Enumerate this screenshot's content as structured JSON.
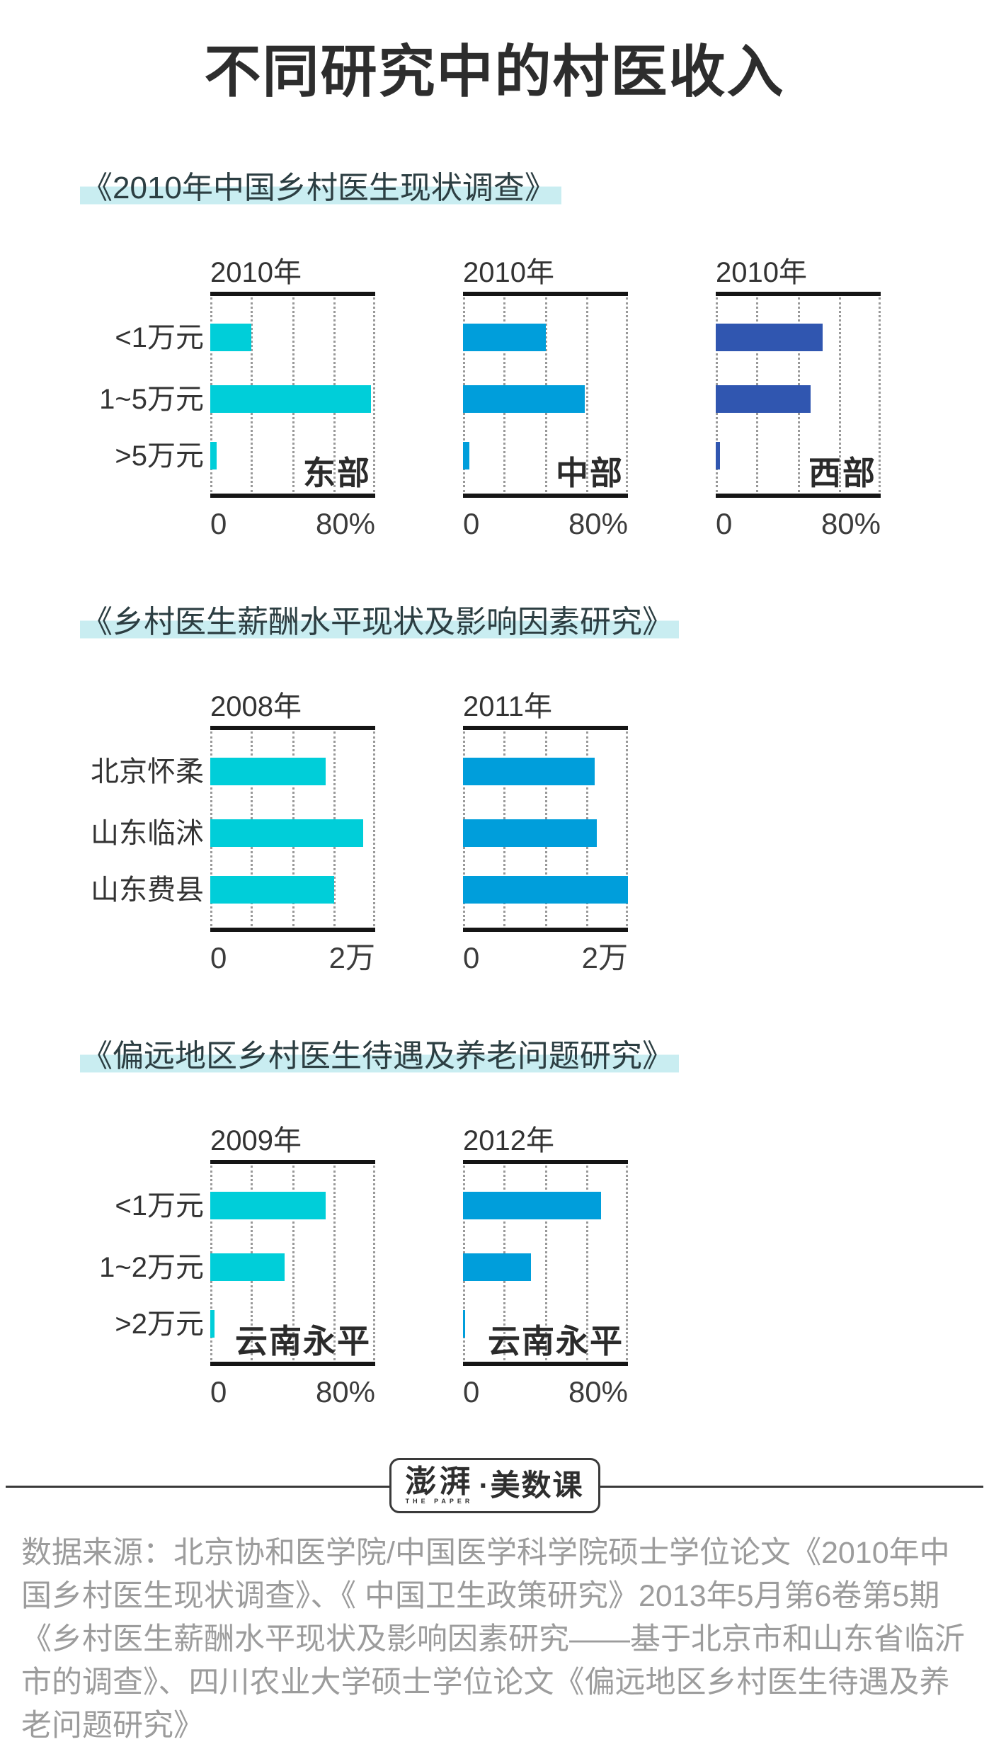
{
  "page": {
    "title": "不同研究中的村医收入"
  },
  "colors": {
    "cyan": "#00ced9",
    "blue": "#009edb",
    "royal_blue": "#3056b0",
    "highlight": "#c9edf1",
    "axis": "#151515",
    "gridline": "#999999",
    "footer_text": "#9c9c9c"
  },
  "logo": {
    "brand": "澎湃",
    "brand_sub": "THE PAPER",
    "suffix": "·美数课"
  },
  "footer": {
    "text": "数据来源：北京协和医学院/中国医学科学院硕士学位论文《2010年中\n国乡村医生现状调查》、《 中国卫生政策研究》2013年5月第6卷第5期\n《乡村医生薪酬水平现状及影响因素研究——基于北京市和山东省临沂\n市的调查》、四川农业大学硕士学位论文《偏远地区乡村医生待遇及养\n老问题研究》"
  },
  "chart_data": [
    {
      "section_title": "《2010年中国乡村医生现状调查》",
      "type": "bar",
      "orientation": "horizontal",
      "categories": [
        "<1万元",
        "1~5万元",
        ">5万元"
      ],
      "axis": {
        "min": 0,
        "max": 80,
        "unit": "%",
        "tick_labels": [
          "0",
          "80%"
        ],
        "gridline_interval": 20,
        "grid": "dotted"
      },
      "charts": [
        {
          "year": "2010年",
          "region": "东部",
          "color": "#00ced9",
          "values": [
            20,
            78,
            3
          ]
        },
        {
          "year": "2010年",
          "region": "中部",
          "color": "#009edb",
          "values": [
            40,
            59,
            3
          ]
        },
        {
          "year": "2010年",
          "region": "西部",
          "color": "#3056b0",
          "values": [
            52,
            46,
            2
          ]
        }
      ]
    },
    {
      "section_title": "《乡村医生薪酬水平现状及影响因素研究》",
      "type": "bar",
      "orientation": "horizontal",
      "categories": [
        "北京怀柔",
        "山东临沭",
        "山东费县"
      ],
      "axis": {
        "min": 0,
        "max": 2,
        "unit": "万",
        "tick_labels": [
          "0",
          "2万"
        ],
        "gridline_interval": 0.5,
        "grid": "dotted"
      },
      "charts": [
        {
          "year": "2008年",
          "region": "",
          "color": "#00ced9",
          "values": [
            1.4,
            1.85,
            1.5
          ]
        },
        {
          "year": "2011年",
          "region": "",
          "color": "#009edb",
          "values": [
            1.6,
            1.62,
            2.0
          ]
        }
      ]
    },
    {
      "section_title": "《偏远地区乡村医生待遇及养老问题研究》",
      "type": "bar",
      "orientation": "horizontal",
      "categories": [
        "<1万元",
        "1~2万元",
        ">2万元"
      ],
      "axis": {
        "min": 0,
        "max": 80,
        "unit": "%",
        "tick_labels": [
          "0",
          "80%"
        ],
        "gridline_interval": 20,
        "grid": "dotted"
      },
      "charts": [
        {
          "year": "2009年",
          "region": "云南永平",
          "color": "#00ced9",
          "values": [
            56,
            36,
            2
          ]
        },
        {
          "year": "2012年",
          "region": "云南永平",
          "color": "#009edb",
          "values": [
            67,
            33,
            1
          ]
        }
      ]
    }
  ]
}
